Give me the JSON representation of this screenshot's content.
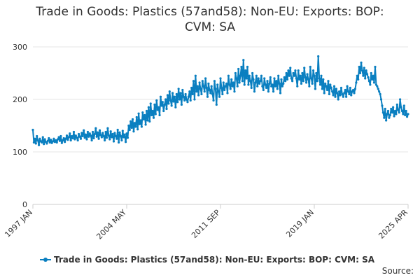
{
  "page": {
    "title_line1": "Trade in Goods: Plastics (57and58): Non-EU: Exports: BOP:",
    "title_line2": "CVM: SA",
    "source_label": "Source:"
  },
  "chart_data": {
    "type": "line",
    "title": "Trade in Goods: Plastics (57and58): Non-EU: Exports: BOP: CVM: SA",
    "xlabel": "",
    "ylabel": "",
    "ylim": [
      0,
      300
    ],
    "yticks": [
      0,
      100,
      200,
      300
    ],
    "x_range": [
      "1997 JAN",
      "2025 APR"
    ],
    "xtick_labels": [
      "1997 JAN",
      "2004 MAY",
      "2011 SEP",
      "2019 JAN",
      "2025 APR"
    ],
    "grid": "horizontal",
    "legend_position": "bottom",
    "colors": {
      "series": "#0a7fc0",
      "grid": "#e6e6e6",
      "axis": "#cccccc",
      "text": "#333333"
    },
    "series": [
      {
        "name": "Trade in Goods: Plastics (57and58): Non-EU: Exports: BOP: CVM: SA",
        "frequency": "monthly",
        "start": "1997 JAN",
        "values": [
          142,
          118,
          125,
          116,
          130,
          122,
          113,
          125,
          120,
          118,
          128,
          115,
          124,
          119,
          116,
          121,
          126,
          118,
          123,
          117,
          120,
          125,
          119,
          122,
          118,
          124,
          128,
          121,
          130,
          117,
          122,
          126,
          119,
          125,
          131,
          123,
          128,
          135,
          122,
          130,
          126,
          138,
          124,
          131,
          127,
          122,
          134,
          129,
          125,
          136,
          130,
          141,
          127,
          133,
          124,
          138,
          129,
          135,
          131,
          122,
          138,
          126,
          134,
          145,
          129,
          137,
          125,
          141,
          132,
          128,
          136,
          130,
          122,
          138,
          127,
          145,
          131,
          124,
          139,
          128,
          134,
          120,
          136,
          130,
          125,
          142,
          118,
          137,
          130,
          122,
          140,
          128,
          133,
          119,
          135,
          127,
          150,
          142,
          158,
          146,
          162,
          139,
          155,
          148,
          166,
          143,
          173,
          153,
          160,
          148,
          175,
          162,
          170,
          152,
          178,
          160,
          185,
          158,
          192,
          170,
          178,
          165,
          190,
          172,
          198,
          180,
          185,
          170,
          205,
          188,
          195,
          178,
          190,
          200,
          182,
          208,
          192,
          215,
          198,
          188,
          212,
          196,
          205,
          185,
          210,
          195,
          220,
          200,
          212,
          190,
          218,
          205,
          198,
          210,
          200,
          195,
          205,
          215,
          198,
          222,
          210,
          235,
          200,
          245,
          215,
          225,
          208,
          232,
          220,
          210,
          235,
          225,
          215,
          240,
          222,
          205,
          230,
          218,
          212,
          225,
          210,
          198,
          235,
          220,
          190,
          228,
          215,
          205,
          240,
          222,
          210,
          232,
          218,
          225,
          230,
          212,
          245,
          228,
          220,
          238,
          225,
          232,
          215,
          250,
          240,
          225,
          258,
          232,
          245,
          262,
          235,
          275,
          228,
          255,
          240,
          262,
          228,
          245,
          235,
          222,
          250,
          238,
          215,
          232,
          245,
          225,
          240,
          230,
          235,
          245,
          225,
          218,
          240,
          228,
          222,
          235,
          215,
          230,
          242,
          225,
          228,
          215,
          240,
          225,
          235,
          220,
          245,
          230,
          212,
          238,
          225,
          230,
          242,
          235,
          250,
          238,
          255,
          245,
          260,
          240,
          235,
          250,
          245,
          255,
          240,
          225,
          255,
          238,
          245,
          230,
          250,
          235,
          260,
          242,
          232,
          248,
          238,
          225,
          262,
          240,
          230,
          255,
          245,
          220,
          250,
          235,
          282,
          240,
          228,
          245,
          220,
          238,
          212,
          230,
          225,
          218,
          235,
          210,
          228,
          222,
          215,
          208,
          225,
          205,
          220,
          212,
          200,
          215,
          208,
          222,
          210,
          205,
          212,
          218,
          205,
          225,
          215,
          210,
          222,
          208,
          215,
          218,
          212,
          220,
          232,
          245,
          238,
          262,
          250,
          270,
          255,
          245,
          260,
          240,
          255,
          248,
          242,
          235,
          228,
          250,
          238,
          245,
          232,
          262,
          228,
          225,
          220,
          215,
          210,
          200,
          188,
          175,
          165,
          182,
          160,
          172,
          178,
          165,
          170,
          182,
          175,
          185,
          168,
          178,
          172,
          190,
          180,
          175,
          200,
          185,
          178,
          172,
          188,
          170,
          178,
          167,
          172
        ]
      }
    ]
  }
}
